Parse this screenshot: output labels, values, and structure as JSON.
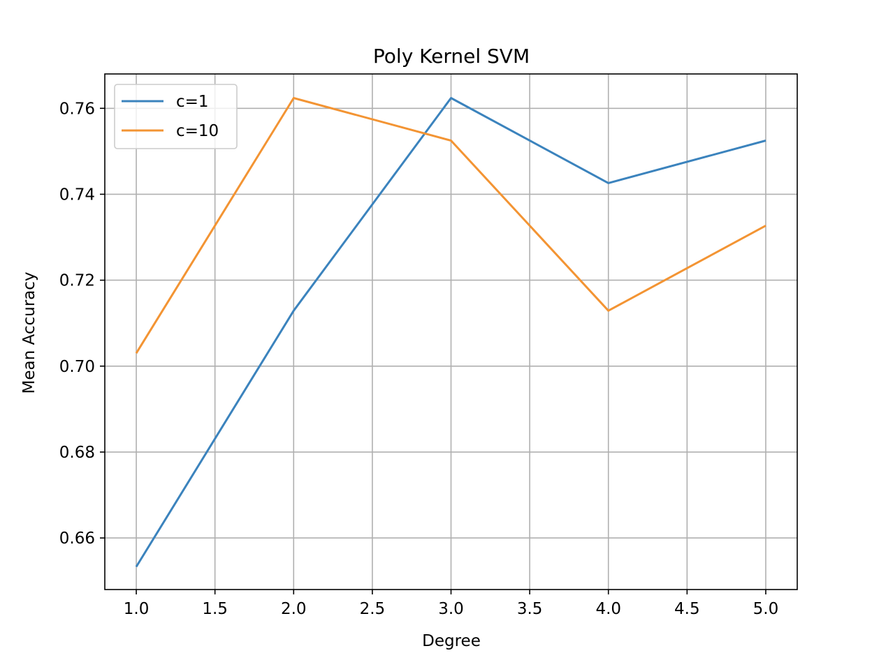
{
  "chart_data": {
    "type": "line",
    "title": "Poly Kernel SVM",
    "xlabel": "Degree",
    "ylabel": "Mean Accuracy",
    "x": [
      1.0,
      2.0,
      3.0,
      4.0,
      5.0
    ],
    "series": [
      {
        "name": "c=1",
        "color": "#3b83bd",
        "values": [
          0.6533,
          0.7129,
          0.7624,
          0.7426,
          0.7525
        ]
      },
      {
        "name": "c=10",
        "color": "#f39433",
        "values": [
          0.703,
          0.7624,
          0.7525,
          0.7129,
          0.7327
        ]
      }
    ],
    "xlim": [
      0.8,
      5.2
    ],
    "ylim": [
      0.648,
      0.768
    ],
    "xticks": [
      1.0,
      1.5,
      2.0,
      2.5,
      3.0,
      3.5,
      4.0,
      4.5,
      5.0
    ],
    "xtick_labels": [
      "1.0",
      "1.5",
      "2.0",
      "2.5",
      "3.0",
      "3.5",
      "4.0",
      "4.5",
      "5.0"
    ],
    "yticks": [
      0.66,
      0.68,
      0.7,
      0.72,
      0.74,
      0.76
    ],
    "ytick_labels": [
      "0.66",
      "0.68",
      "0.70",
      "0.72",
      "0.74",
      "0.76"
    ],
    "grid": true,
    "legend": "top-left"
  }
}
